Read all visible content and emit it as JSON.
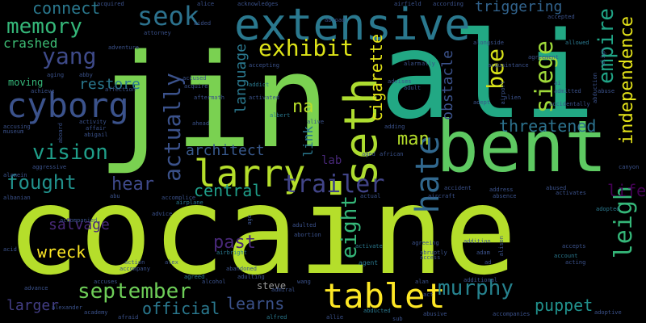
{
  "background": "#000000",
  "words": [
    {
      "text": "cocaine",
      "color": "#b5de2b",
      "vertical": false
    },
    {
      "text": "jin",
      "color": "#7ad151",
      "vertical": false
    },
    {
      "text": "ali",
      "color": "#22a884",
      "vertical": false
    },
    {
      "text": "bent",
      "color": "#5ec962",
      "vertical": false
    },
    {
      "text": "extensive",
      "color": "#2a788e",
      "vertical": false
    },
    {
      "text": "cyborg",
      "color": "#3b528b",
      "vertical": false
    },
    {
      "text": "seth",
      "color": "#addc30",
      "vertical": true
    },
    {
      "text": "larry",
      "color": "#b5de2b",
      "vertical": false
    },
    {
      "text": "tablet",
      "color": "#fde725",
      "vertical": false
    },
    {
      "text": "trailer",
      "color": "#414487",
      "vertical": false
    },
    {
      "text": "hate",
      "color": "#31688e",
      "vertical": true
    },
    {
      "text": "seok",
      "color": "#2c728e",
      "vertical": false
    },
    {
      "text": "memory",
      "color": "#35b779",
      "vertical": false
    },
    {
      "text": "yang",
      "color": "#3e4a89",
      "vertical": false
    },
    {
      "text": "exhibit",
      "color": "#dde318",
      "vertical": false
    },
    {
      "text": "connect",
      "color": "#2a788e",
      "vertical": false
    },
    {
      "text": "actually",
      "color": "#3b528b",
      "vertical": true
    },
    {
      "text": "vision",
      "color": "#1f9e89",
      "vertical": false
    },
    {
      "text": "fought",
      "color": "#21918c",
      "vertical": false
    },
    {
      "text": "leigh",
      "color": "#35b779",
      "vertical": true
    },
    {
      "text": "murphy",
      "color": "#26828e",
      "vertical": false
    },
    {
      "text": "september",
      "color": "#6ece58",
      "vertical": false
    },
    {
      "text": "empire",
      "color": "#20a486",
      "vertical": true
    },
    {
      "text": "siege",
      "color": "#9fda3a",
      "vertical": true
    },
    {
      "text": "bee",
      "color": "#d8e219",
      "vertical": true
    },
    {
      "text": "eight",
      "color": "#35b779",
      "vertical": true
    },
    {
      "text": "man",
      "color": "#b5de2b",
      "vertical": false
    },
    {
      "text": "past",
      "color": "#482878",
      "vertical": false
    },
    {
      "text": "hear",
      "color": "#3e4989",
      "vertical": false
    },
    {
      "text": "na",
      "color": "#b8de29",
      "vertical": false
    },
    {
      "text": "central",
      "color": "#1f9e89",
      "vertical": false
    },
    {
      "text": "architect",
      "color": "#38598c",
      "vertical": false
    },
    {
      "text": "threatened",
      "color": "#2c728e",
      "vertical": false
    },
    {
      "text": "independence",
      "color": "#e5e419",
      "vertical": true
    },
    {
      "text": "language",
      "color": "#2a788e",
      "vertical": true
    },
    {
      "text": "cigarette",
      "color": "#e2e418",
      "vertical": true
    },
    {
      "text": "obstacle",
      "color": "#3b528b",
      "vertical": true
    },
    {
      "text": "life",
      "color": "#440154",
      "vertical": false
    },
    {
      "text": "triggering",
      "color": "#32648e",
      "vertical": false
    },
    {
      "text": "puppet",
      "color": "#21918c",
      "vertical": false
    },
    {
      "text": "official",
      "color": "#2a788e",
      "vertical": false
    },
    {
      "text": "learns",
      "color": "#3b528b",
      "vertical": false
    },
    {
      "text": "larger",
      "color": "#433e85",
      "vertical": false
    },
    {
      "text": "restore",
      "color": "#2a788e",
      "vertical": false
    },
    {
      "text": "salvage",
      "color": "#482878",
      "vertical": false
    },
    {
      "text": "wreck",
      "color": "#fde725",
      "vertical": false
    },
    {
      "text": "crashed",
      "color": "#3dbc74",
      "vertical": false
    },
    {
      "text": "link",
      "color": "#2a788e",
      "vertical": true
    },
    {
      "text": "lab",
      "color": "#482878",
      "vertical": false
    },
    {
      "text": "moving",
      "color": "#35b779",
      "vertical": false
    },
    {
      "text": "steve",
      "color": "#9b9b9b",
      "vertical": false
    },
    {
      "text": "agent",
      "color": "#2a788e",
      "vertical": false
    },
    {
      "text": "aided",
      "color": "#3b528b",
      "vertical": false
    },
    {
      "text": "acquired",
      "color": "#3b528b",
      "vertical": false
    },
    {
      "text": "advice",
      "color": "#3b528b",
      "vertical": false
    },
    {
      "text": "airplane",
      "color": "#2a788e",
      "vertical": false
    },
    {
      "text": "accompanied",
      "color": "#3b528b",
      "vertical": false
    },
    {
      "text": "acting",
      "color": "#3b528b",
      "vertical": false
    },
    {
      "text": "adopted",
      "color": "#2a788e",
      "vertical": false
    },
    {
      "text": "canyon",
      "color": "#3b528b",
      "vertical": false
    },
    {
      "text": "activates",
      "color": "#3b528b",
      "vertical": false
    },
    {
      "text": "account",
      "color": "#2a788e",
      "vertical": false
    },
    {
      "text": "accepts",
      "color": "#3b528b",
      "vertical": false
    },
    {
      "text": "adoptive",
      "color": "#3b528b",
      "vertical": false
    },
    {
      "text": "accompanies",
      "color": "#3b528b",
      "vertical": false
    },
    {
      "text": "abusive",
      "color": "#3b528b",
      "vertical": false
    },
    {
      "text": "abducted",
      "color": "#2a788e",
      "vertical": false
    },
    {
      "text": "afraid",
      "color": "#3b528b",
      "vertical": false
    },
    {
      "text": "academy",
      "color": "#3b528b",
      "vertical": false
    },
    {
      "text": "alfred",
      "color": "#2a788e",
      "vertical": false
    },
    {
      "text": "advance",
      "color": "#3b528b",
      "vertical": false
    },
    {
      "text": "alcohol",
      "color": "#3b528b",
      "vertical": false
    },
    {
      "text": "accuses",
      "color": "#3b528b",
      "vertical": false
    },
    {
      "text": "agreed",
      "color": "#2a788e",
      "vertical": false
    },
    {
      "text": "admiral",
      "color": "#3b528b",
      "vertical": false
    },
    {
      "text": "alan",
      "color": "#3b528b",
      "vertical": false
    },
    {
      "text": "abandoned",
      "color": "#3b528b",
      "vertical": false
    },
    {
      "text": "airbright",
      "color": "#2a788e",
      "vertical": false
    },
    {
      "text": "adulted",
      "color": "#3b528b",
      "vertical": false
    },
    {
      "text": "abortion",
      "color": "#3b528b",
      "vertical": false
    },
    {
      "text": "activate",
      "color": "#2a788e",
      "vertical": false
    },
    {
      "text": "alison",
      "color": "#3b528b",
      "vertical": true
    },
    {
      "text": "accused",
      "color": "#3b528b",
      "vertical": false
    },
    {
      "text": "acquire",
      "color": "#3b528b",
      "vertical": false
    },
    {
      "text": "aftermath",
      "color": "#3b528b",
      "vertical": false
    },
    {
      "text": "addict",
      "color": "#2a788e",
      "vertical": false
    },
    {
      "text": "accepting",
      "color": "#3b528b",
      "vertical": false
    },
    {
      "text": "activated",
      "color": "#3b528b",
      "vertical": false
    },
    {
      "text": "alive",
      "color": "#3b528b",
      "vertical": false
    },
    {
      "text": "albert",
      "color": "#2a788e",
      "vertical": false
    },
    {
      "text": "advises",
      "color": "#3b528b",
      "vertical": false
    },
    {
      "text": "acquaintance",
      "color": "#3b528b",
      "vertical": false
    },
    {
      "text": "agreement",
      "color": "#3b528b",
      "vertical": false
    },
    {
      "text": "accepted",
      "color": "#3b528b",
      "vertical": false
    },
    {
      "text": "allowed",
      "color": "#2a788e",
      "vertical": false
    },
    {
      "text": "according",
      "color": "#3b528b",
      "vertical": false
    },
    {
      "text": "airfield",
      "color": "#3b528b",
      "vertical": false
    },
    {
      "text": "acknowledges",
      "color": "#3b528b",
      "vertical": false
    },
    {
      "text": "alice",
      "color": "#3b528b",
      "vertical": false
    },
    {
      "text": "adventure",
      "color": "#3b528b",
      "vertical": false
    },
    {
      "text": "affection",
      "color": "#3b528b",
      "vertical": false
    },
    {
      "text": "abby",
      "color": "#3b528b",
      "vertical": false
    },
    {
      "text": "aging",
      "color": "#3b528b",
      "vertical": false
    },
    {
      "text": "achieve",
      "color": "#3b528b",
      "vertical": false
    },
    {
      "text": "accusing",
      "color": "#3b528b",
      "vertical": false
    },
    {
      "text": "activity",
      "color": "#3b528b",
      "vertical": false
    },
    {
      "text": "affair",
      "color": "#3b528b",
      "vertical": false
    },
    {
      "text": "abigail",
      "color": "#3b528b",
      "vertical": false
    },
    {
      "text": "aggressive",
      "color": "#3b528b",
      "vertical": false
    },
    {
      "text": "alamein",
      "color": "#3b528b",
      "vertical": false
    },
    {
      "text": "aboard",
      "color": "#3b528b",
      "vertical": true
    },
    {
      "text": "attorney",
      "color": "#3b528b",
      "vertical": false
    },
    {
      "text": "adding",
      "color": "#3b528b",
      "vertical": false
    },
    {
      "text": "ahead",
      "color": "#3b528b",
      "vertical": false
    },
    {
      "text": "accomplice",
      "color": "#3b528b",
      "vertical": false
    },
    {
      "text": "abroad",
      "color": "#3b528b",
      "vertical": false
    },
    {
      "text": "aged",
      "color": "#3b528b",
      "vertical": false
    },
    {
      "text": "african",
      "color": "#3b528b",
      "vertical": false
    },
    {
      "text": "accident",
      "color": "#3b528b",
      "vertical": false
    },
    {
      "text": "abused",
      "color": "#3b528b",
      "vertical": false
    },
    {
      "text": "actual",
      "color": "#3b528b",
      "vertical": false
    },
    {
      "text": "aircraft",
      "color": "#3b528b",
      "vertical": false
    },
    {
      "text": "absence",
      "color": "#3b528b",
      "vertical": false
    },
    {
      "text": "address",
      "color": "#3b528b",
      "vertical": false
    },
    {
      "text": "abruptly",
      "color": "#3b528b",
      "vertical": false
    },
    {
      "text": "agreeing",
      "color": "#3b528b",
      "vertical": false
    },
    {
      "text": "access",
      "color": "#3b528b",
      "vertical": false
    },
    {
      "text": "addition",
      "color": "#3b528b",
      "vertical": false
    },
    {
      "text": "adam",
      "color": "#3b528b",
      "vertical": false
    },
    {
      "text": "ad",
      "color": "#3b528b",
      "vertical": false
    },
    {
      "text": "additional",
      "color": "#3b528b",
      "vertical": false
    },
    {
      "text": "act",
      "color": "#3b528b",
      "vertical": false
    },
    {
      "text": "alex",
      "color": "#3b528b",
      "vertical": false
    },
    {
      "text": "action",
      "color": "#3b528b",
      "vertical": false
    },
    {
      "text": "accompany",
      "color": "#3b528b",
      "vertical": false
    },
    {
      "text": "ally",
      "color": "#3b528b",
      "vertical": false
    },
    {
      "text": "alarm",
      "color": "#3b528b",
      "vertical": false
    },
    {
      "text": "adult",
      "color": "#3b528b",
      "vertical": false
    },
    {
      "text": "alongside",
      "color": "#3b528b",
      "vertical": false
    },
    {
      "text": "abuse",
      "color": "#3b528b",
      "vertical": false
    },
    {
      "text": "abduction",
      "color": "#3b528b",
      "vertical": true
    },
    {
      "text": "accidentally",
      "color": "#3b528b",
      "vertical": false
    },
    {
      "text": "adept",
      "color": "#3b528b",
      "vertical": false
    },
    {
      "text": "airport",
      "color": "#3b528b",
      "vertical": true
    },
    {
      "text": "ai",
      "color": "#3b528b",
      "vertical": false
    },
    {
      "text": "align",
      "color": "#3b528b",
      "vertical": true
    },
    {
      "text": "alien",
      "color": "#3b528b",
      "vertical": false
    },
    {
      "text": "admitted",
      "color": "#3b528b",
      "vertical": false
    },
    {
      "text": "abu",
      "color": "#3b528b",
      "vertical": false
    },
    {
      "text": "ago",
      "color": "#3b528b",
      "vertical": true
    },
    {
      "text": "wang",
      "color": "#3b528b",
      "vertical": false
    },
    {
      "text": "sub",
      "color": "#3b528b",
      "vertical": false
    },
    {
      "text": "acid",
      "color": "#3b528b",
      "vertical": false
    },
    {
      "text": "alexander",
      "color": "#3b528b",
      "vertical": false
    },
    {
      "text": "adulting",
      "color": "#3b528b",
      "vertical": false
    },
    {
      "text": "allie",
      "color": "#3b528b",
      "vertical": false
    },
    {
      "text": "museum",
      "color": "#3b528b",
      "vertical": false
    },
    {
      "text": "albanian",
      "color": "#3b528b",
      "vertical": false
    }
  ]
}
